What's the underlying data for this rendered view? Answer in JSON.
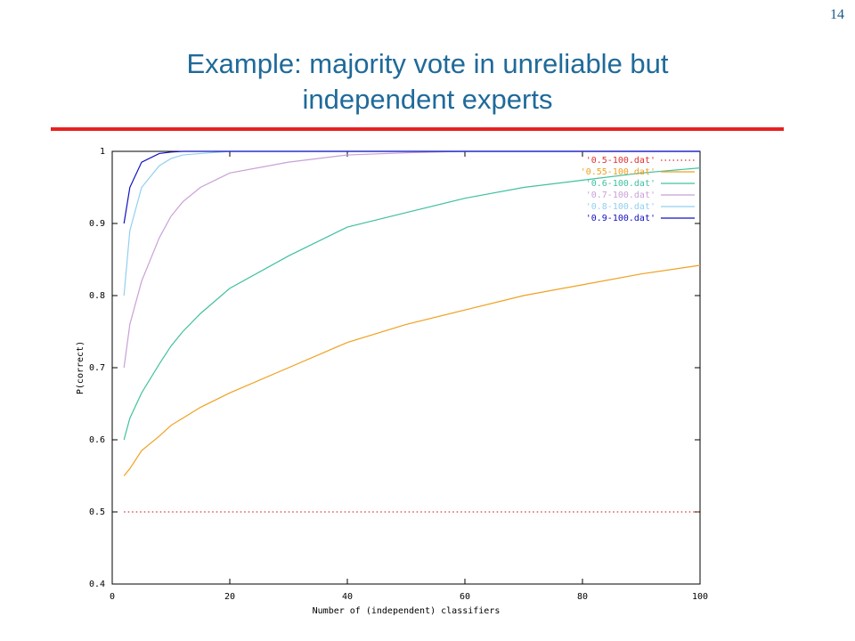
{
  "page_number": "14",
  "chart_data": {
    "type": "line",
    "title": "Example: majority vote in unreliable but independent experts",
    "xlabel": "Number of (independent) classifiers",
    "ylabel": "P(correct)",
    "x": [
      2,
      3,
      5,
      8,
      10,
      12,
      15,
      20,
      30,
      40,
      50,
      60,
      70,
      80,
      90,
      100
    ],
    "xlim": [
      0,
      100
    ],
    "xticks": [
      0,
      20,
      40,
      60,
      80,
      100
    ],
    "ylim": [
      0.4,
      1
    ],
    "yticks": [
      0.4,
      0.5,
      0.6,
      0.7,
      0.8,
      0.9,
      1
    ],
    "legend": "top-right",
    "series": [
      {
        "name": "'0.5-100.dat'",
        "color": "#e03030",
        "linestyle": "dotted",
        "values": [
          0.5,
          0.5,
          0.5,
          0.5,
          0.5,
          0.5,
          0.5,
          0.5,
          0.5,
          0.5,
          0.5,
          0.5,
          0.5,
          0.5,
          0.5,
          0.5
        ]
      },
      {
        "name": "'0.55-100.dat'",
        "color": "#f0a020",
        "linestyle": "solid",
        "values": [
          0.55,
          0.56,
          0.585,
          0.605,
          0.62,
          0.63,
          0.645,
          0.665,
          0.7,
          0.735,
          0.76,
          0.78,
          0.8,
          0.815,
          0.83,
          0.842
        ]
      },
      {
        "name": "'0.6-100.dat'",
        "color": "#40c0a0",
        "linestyle": "solid",
        "values": [
          0.6,
          0.63,
          0.665,
          0.705,
          0.73,
          0.75,
          0.775,
          0.81,
          0.855,
          0.895,
          0.915,
          0.935,
          0.95,
          0.96,
          0.97,
          0.977
        ]
      },
      {
        "name": "'0.7-100.dat'",
        "color": "#c8a0d8",
        "linestyle": "solid",
        "values": [
          0.7,
          0.76,
          0.82,
          0.88,
          0.91,
          0.93,
          0.95,
          0.97,
          0.985,
          0.995,
          0.998,
          1,
          1,
          1,
          1,
          1
        ]
      },
      {
        "name": "'0.8-100.dat'",
        "color": "#90d0f0",
        "linestyle": "solid",
        "values": [
          0.8,
          0.89,
          0.95,
          0.98,
          0.99,
          0.995,
          0.997,
          1,
          1,
          1,
          1,
          1,
          1,
          1,
          1,
          1
        ]
      },
      {
        "name": "'0.9-100.dat'",
        "color": "#1010c0",
        "linestyle": "solid",
        "values": [
          0.9,
          0.95,
          0.985,
          0.997,
          0.999,
          1,
          1,
          1,
          1,
          1,
          1,
          1,
          1,
          1,
          1,
          1
        ]
      }
    ]
  }
}
